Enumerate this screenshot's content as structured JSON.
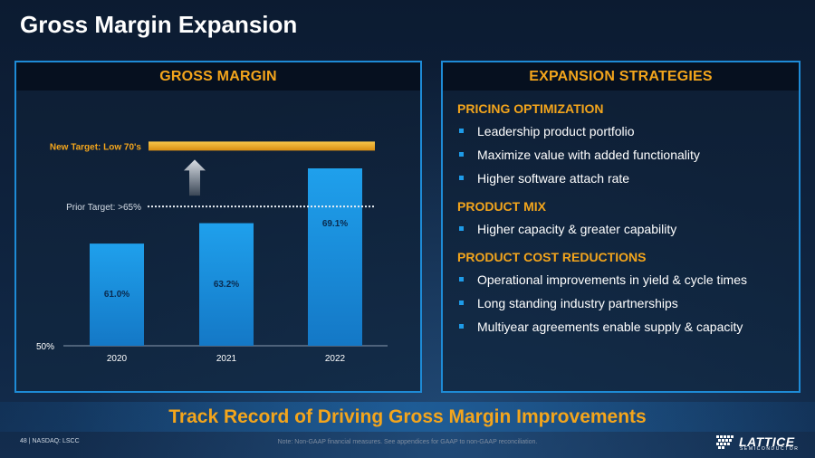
{
  "slide": {
    "title": "Gross Margin Expansion",
    "banner": "Track Record of Driving Gross Margin Improvements",
    "footer_page": "48  |  NASDAQ: LSCC",
    "footer_note": "Note: Non-GAAP financial measures. See appendices for GAAP to non-GAAP reconciliation.",
    "logo_text": "LATTICE",
    "logo_subtext": "SEMICONDUCTOR"
  },
  "left_panel": {
    "header": "GROSS MARGIN"
  },
  "right_panel": {
    "header": "EXPANSION STRATEGIES",
    "sections": [
      {
        "title": "PRICING OPTIMIZATION",
        "bullets": [
          "Leadership product portfolio",
          "Maximize value with added functionality",
          "Higher software attach rate"
        ]
      },
      {
        "title": "PRODUCT MIX",
        "bullets": [
          "Higher capacity & greater capability"
        ]
      },
      {
        "title": "PRODUCT COST REDUCTIONS",
        "bullets": [
          "Operational improvements in yield & cycle times",
          "Long standing industry partnerships",
          "Multiyear agreements enable supply & capacity"
        ]
      }
    ]
  },
  "chart_data": {
    "type": "bar",
    "title": "GROSS MARGIN",
    "categories": [
      "2020",
      "2021",
      "2022"
    ],
    "values": [
      61.0,
      63.2,
      69.1
    ],
    "data_labels": [
      "61.0%",
      "63.2%",
      "69.1%"
    ],
    "baseline_label": "50%",
    "ylim": [
      50,
      73
    ],
    "prior_target": {
      "value": 65,
      "label": "Prior Target: >65%"
    },
    "new_target": {
      "value": 71.5,
      "label": "New Target: Low 70's"
    },
    "colors": {
      "bar": "#1f9be8",
      "bar_dark": "#1476c4",
      "target": "#f3a51c",
      "label_bar": "#0a2a4e",
      "axis_text": "#ffffff"
    }
  }
}
